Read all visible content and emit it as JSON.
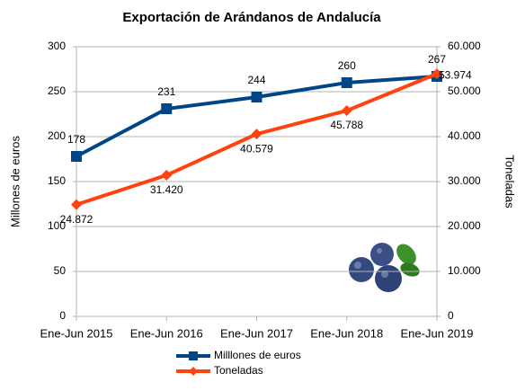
{
  "chart_data": {
    "type": "line",
    "title": "Exportación de Arándanos de Andalucía",
    "ylabel": "Millones de euros",
    "y2label": "Toneladas",
    "categories": [
      "Ene-Jun 2015",
      "Ene-Jun 2016",
      "Ene-Jun 2017",
      "Ene-Jun 2018",
      "Ene-Jun 2019"
    ],
    "series": [
      {
        "name": "Milllones de euros",
        "color": "#004586",
        "marker": "square",
        "values": [
          178,
          231,
          244,
          260,
          267
        ]
      },
      {
        "name": "Toneladas",
        "color": "#ff420e",
        "marker": "diamond",
        "axis": "y2",
        "values": [
          24872,
          31420,
          40579,
          45788,
          53974
        ],
        "value_labels": [
          "24.872",
          "31.420",
          "40.579",
          "45.788",
          "53.974"
        ]
      }
    ],
    "ylim": [
      0,
      300
    ],
    "yticks": [
      0,
      50,
      100,
      150,
      200,
      250,
      300
    ],
    "y2lim": [
      0,
      60000
    ],
    "y2ticks": [
      0,
      {
        "value": 10000,
        "label": "10.000"
      },
      {
        "value": 20000,
        "label": "20.000"
      },
      {
        "value": 30000,
        "label": "30.000"
      },
      {
        "value": 40000,
        "label": "40.000"
      },
      {
        "value": 50000,
        "label": "50.000"
      },
      {
        "value": 60000,
        "label": "60.000"
      }
    ],
    "grid": true,
    "legend": "bottom"
  }
}
